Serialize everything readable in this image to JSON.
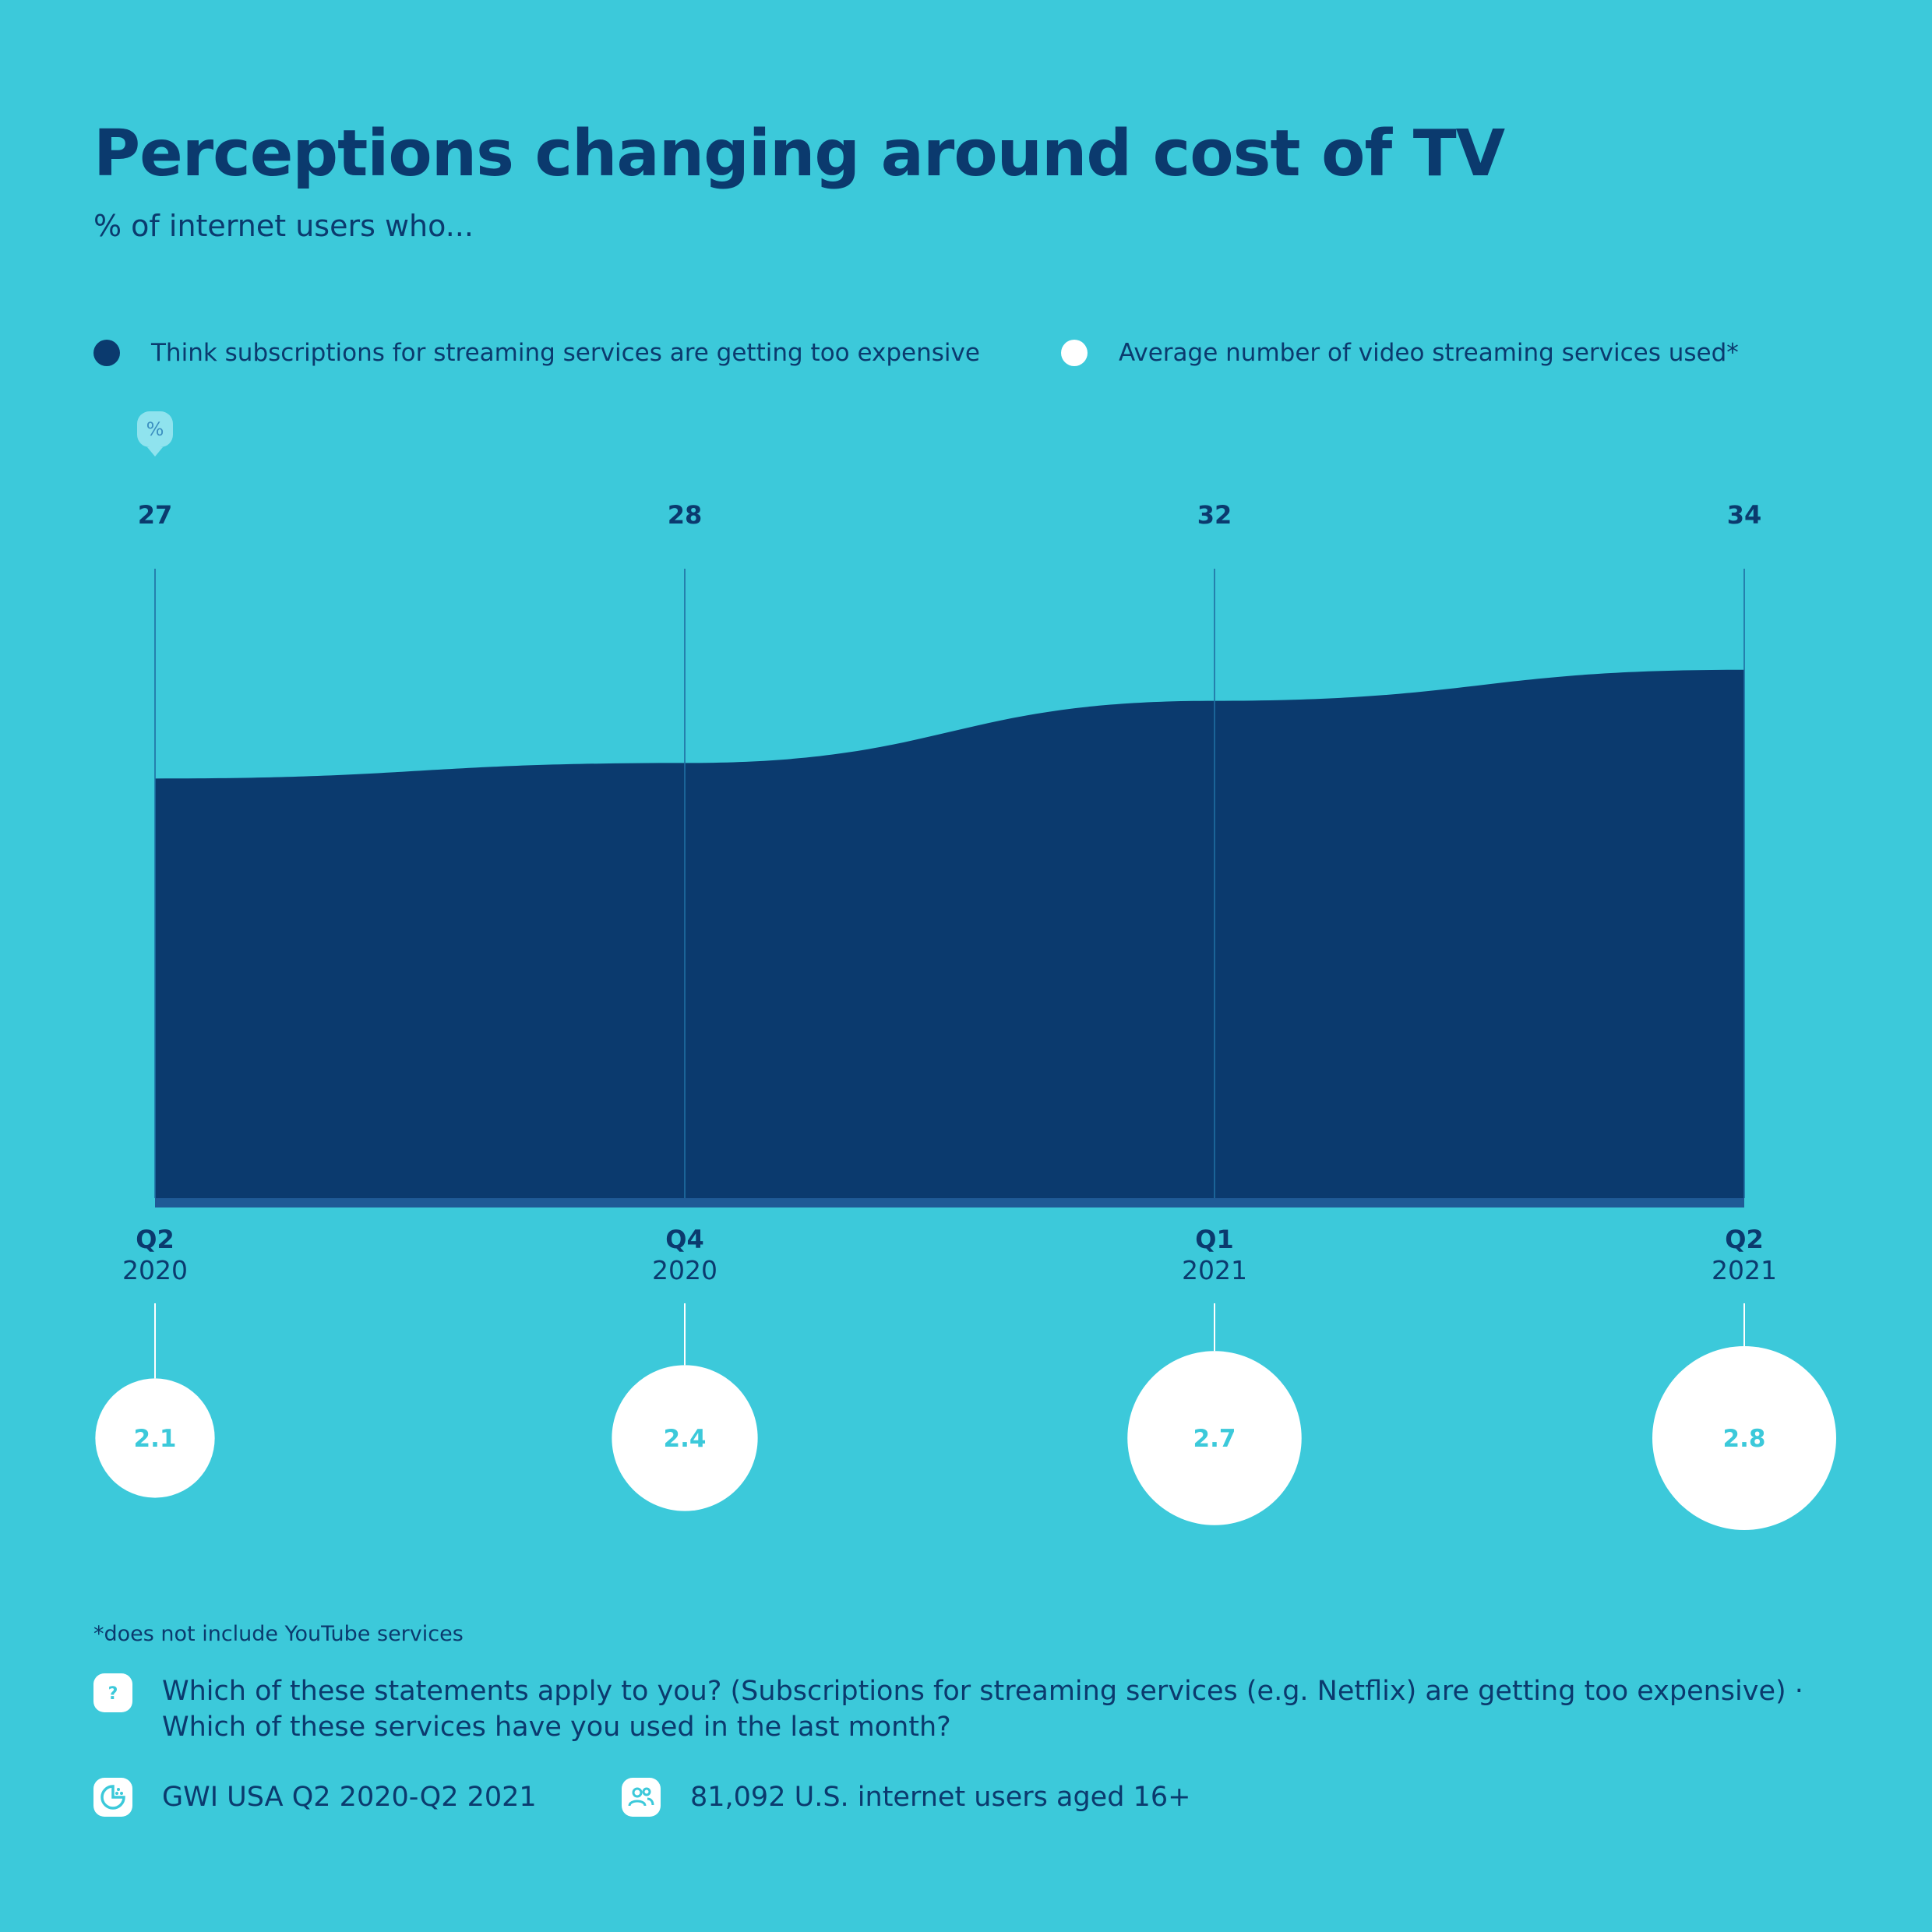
{
  "header": {
    "title": "Perceptions changing around cost of TV",
    "subtitle": "% of internet users who..."
  },
  "legend": [
    {
      "label": "Think subscriptions for streaming services are getting too expensive",
      "color": "#0b3a6e"
    },
    {
      "label": "Average number of video streaming services used*",
      "color": "#ffffff"
    }
  ],
  "unit_badge": "%",
  "chart_data": {
    "type": "area",
    "categories": [
      {
        "quarter": "Q2",
        "year": "2020"
      },
      {
        "quarter": "Q4",
        "year": "2020"
      },
      {
        "quarter": "Q1",
        "year": "2021"
      },
      {
        "quarter": "Q2",
        "year": "2021"
      }
    ],
    "series": [
      {
        "name": "Think subscriptions for streaming services are getting too expensive",
        "values": [
          27,
          28,
          32,
          34
        ],
        "color": "#0b3a6e"
      },
      {
        "name": "Average number of video streaming services used*",
        "values": [
          2.1,
          2.4,
          2.7,
          2.8
        ],
        "color": "#ffffff"
      }
    ],
    "ylim": [
      0,
      40
    ],
    "grid": false
  },
  "footnote": "*does not include YouTube services",
  "question": "Which of these statements apply to you? (Subscriptions for streaming services (e.g. Netflix) are getting too expensive) · Which of these services have you used in the last month?",
  "source": "GWI USA Q2 2020-Q2 2021",
  "sample": "81,092 U.S. internet users aged 16+",
  "colors": {
    "background": "#3cc9da",
    "navy": "#0b3a6e",
    "baseline": "#1f5a96",
    "bubble_text": "#3cc9da",
    "badge": "#8fe3ee"
  },
  "icons": {
    "question": "question-icon",
    "source": "pie-chart-icon",
    "sample": "people-icon",
    "unit": "percent-badge-icon"
  }
}
